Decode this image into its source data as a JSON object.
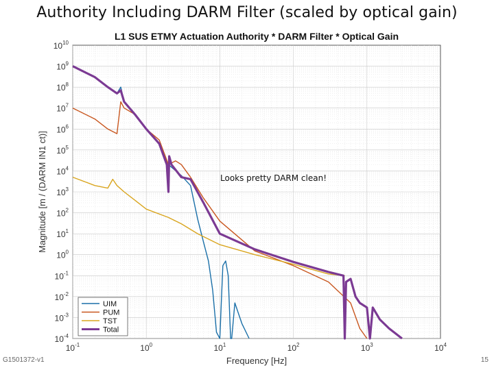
{
  "slide": {
    "title": "Authority Including DARM Filter (scaled by optical gain)",
    "footer_id": "G1501372-v1",
    "page_number": "15"
  },
  "chart_data": {
    "type": "line",
    "title": "L1 SUS ETMY Actuation Authority * DARM Filter * Optical Gain",
    "xlabel": "Frequency [Hz]",
    "ylabel": "Magnitude [m / (DARM IN1 ct)]",
    "xscale": "log",
    "yscale": "log",
    "xlim": [
      0.1,
      10000
    ],
    "ylim": [
      0.0001,
      10000000000
    ],
    "grid": true,
    "legend_position": "bottom-left",
    "x_tick_labels": [
      {
        "base": "10",
        "exp": "-1"
      },
      {
        "base": "10",
        "exp": "0"
      },
      {
        "base": "10",
        "exp": "1"
      },
      {
        "base": "10",
        "exp": "2"
      },
      {
        "base": "10",
        "exp": "3"
      },
      {
        "base": "10",
        "exp": "4"
      }
    ],
    "y_tick_labels": [
      {
        "base": "10",
        "exp": "-4"
      },
      {
        "base": "10",
        "exp": "-3"
      },
      {
        "base": "10",
        "exp": "-2"
      },
      {
        "base": "10",
        "exp": "-1"
      },
      {
        "base": "10",
        "exp": "0"
      },
      {
        "base": "10",
        "exp": "1"
      },
      {
        "base": "10",
        "exp": "2"
      },
      {
        "base": "10",
        "exp": "3"
      },
      {
        "base": "10",
        "exp": "4"
      },
      {
        "base": "10",
        "exp": "5"
      },
      {
        "base": "10",
        "exp": "6"
      },
      {
        "base": "10",
        "exp": "7"
      },
      {
        "base": "10",
        "exp": "8"
      },
      {
        "base": "10",
        "exp": "9"
      },
      {
        "base": "10",
        "exp": "10"
      }
    ],
    "annotation": "Looks pretty DARM clean!",
    "series": [
      {
        "name": "UIM",
        "color": "#1a6fa8",
        "points": [
          [
            0.1,
            1000000000.0
          ],
          [
            0.2,
            300000000.0
          ],
          [
            0.3,
            100000000.0
          ],
          [
            0.4,
            50000000.0
          ],
          [
            0.45,
            100000000.0
          ],
          [
            0.5,
            20000000.0
          ],
          [
            0.7,
            5000000.0
          ],
          [
            1.0,
            1000000.0
          ],
          [
            1.5,
            200000.0
          ],
          [
            2.0,
            20000.0
          ],
          [
            3.0,
            6000.0
          ],
          [
            4.0,
            2000.0
          ],
          [
            5.0,
            50.0
          ],
          [
            6.0,
            4
          ],
          [
            7.0,
            0.5
          ],
          [
            8.0,
            0.02
          ],
          [
            9.0,
            0.0002
          ],
          [
            10,
            0.0001
          ],
          [
            11,
            0.3
          ],
          [
            12,
            0.5
          ],
          [
            13,
            0.1
          ],
          [
            14,
            0.0001
          ],
          [
            14.5,
            0.0001
          ],
          [
            16,
            0.005
          ],
          [
            20,
            0.0005
          ],
          [
            25,
            0.0001
          ]
        ]
      },
      {
        "name": "PUM",
        "color": "#c8561e",
        "points": [
          [
            0.1,
            10000000.0
          ],
          [
            0.2,
            3000000.0
          ],
          [
            0.3,
            1000000.0
          ],
          [
            0.4,
            600000.0
          ],
          [
            0.45,
            20000000.0
          ],
          [
            0.5,
            10000000.0
          ],
          [
            0.7,
            5000000.0
          ],
          [
            1.0,
            1000000.0
          ],
          [
            1.5,
            300000.0
          ],
          [
            2.0,
            20000.0
          ],
          [
            2.5,
            30000.0
          ],
          [
            3.0,
            20000.0
          ],
          [
            4.0,
            5000.0
          ],
          [
            6.0,
            500.0
          ],
          [
            10,
            40
          ],
          [
            30,
            1.5
          ],
          [
            100,
            0.3
          ],
          [
            300,
            0.05
          ],
          [
            600,
            0.005
          ],
          [
            800,
            0.0003
          ],
          [
            1000,
            0.0001
          ]
        ]
      },
      {
        "name": "TST",
        "color": "#d9a51e",
        "points": [
          [
            0.1,
            5000.0
          ],
          [
            0.2,
            2000.0
          ],
          [
            0.3,
            1500.0
          ],
          [
            0.35,
            4000.0
          ],
          [
            0.4,
            2000.0
          ],
          [
            0.5,
            1000.0
          ],
          [
            0.7,
            400
          ],
          [
            1.0,
            150
          ],
          [
            2.0,
            60
          ],
          [
            3.0,
            30
          ],
          [
            5.0,
            10
          ],
          [
            10,
            3
          ],
          [
            30,
            1
          ],
          [
            100,
            0.35
          ],
          [
            300,
            0.12
          ],
          [
            500,
            0.1
          ]
        ]
      },
      {
        "name": "Total",
        "color": "#7b3a93",
        "points": [
          [
            0.1,
            1000000000.0
          ],
          [
            0.2,
            300000000.0
          ],
          [
            0.3,
            100000000.0
          ],
          [
            0.4,
            50000000.0
          ],
          [
            0.45,
            70000000.0
          ],
          [
            0.5,
            20000000.0
          ],
          [
            0.7,
            5000000.0
          ],
          [
            1.0,
            1000000.0
          ],
          [
            1.5,
            200000.0
          ],
          [
            1.9,
            20000.0
          ],
          [
            2.0,
            1000.0
          ],
          [
            2.05,
            50000.0
          ],
          [
            2.2,
            20000.0
          ],
          [
            3.0,
            5000.0
          ],
          [
            4.0,
            4000.0
          ],
          [
            6.0,
            300
          ],
          [
            10,
            10
          ],
          [
            30,
            1.8
          ],
          [
            100,
            0.45
          ],
          [
            300,
            0.15
          ],
          [
            480,
            0.1
          ],
          [
            500,
            0.0001
          ],
          [
            520,
            0.05
          ],
          [
            600,
            0.07
          ],
          [
            700,
            0.01
          ],
          [
            800,
            0.005
          ],
          [
            1000,
            0.003
          ],
          [
            1100,
            0.0001
          ],
          [
            1200,
            0.003
          ],
          [
            1500,
            0.0008
          ],
          [
            2000,
            0.0003
          ],
          [
            3000,
            0.0001
          ]
        ]
      }
    ]
  }
}
